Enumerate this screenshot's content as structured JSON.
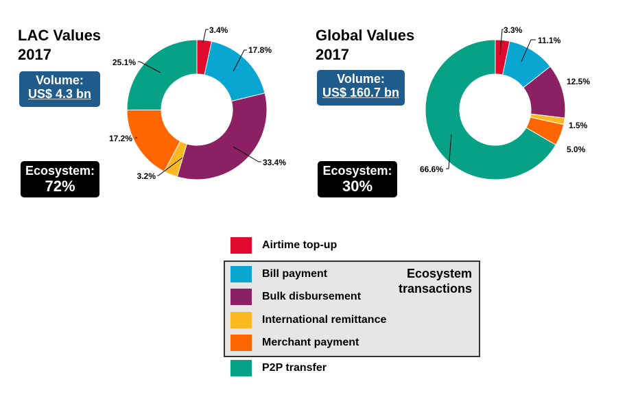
{
  "colors": {
    "airtime": "#e0092e",
    "bill": "#0aa6d2",
    "bulk": "#8b2162",
    "remit": "#fcb823",
    "merchant": "#ff6600",
    "p2p": "#07a285"
  },
  "panels": [
    {
      "title_line1": "LAC Values",
      "title_line2": "2017",
      "volume_line1": "Volume:",
      "volume_line2": "US$ 4.3 bn",
      "eco_line1": "Ecosystem:",
      "eco_line2": "72%"
    },
    {
      "title_line1": "Global Values",
      "title_line2": "2017",
      "volume_line1": "Volume:",
      "volume_line2": "US$ 160.7 bn",
      "eco_line1": "Ecosystem:",
      "eco_line2": "30%"
    }
  ],
  "legend": {
    "items": [
      {
        "label": "Airtime top-up",
        "color_key": "airtime"
      },
      {
        "label": "Bill payment",
        "color_key": "bill"
      },
      {
        "label": "Bulk disbursement",
        "color_key": "bulk"
      },
      {
        "label": "International remittance",
        "color_key": "remit"
      },
      {
        "label": "Merchant payment",
        "color_key": "merchant"
      },
      {
        "label": "P2P transfer",
        "color_key": "p2p"
      }
    ],
    "ecosystem_caption_line1": "Ecosystem",
    "ecosystem_caption_line2": "transactions"
  },
  "chart_data": [
    {
      "type": "pie",
      "subtype": "donut",
      "title": "LAC Values 2017",
      "categories": [
        "Airtime top-up",
        "Bill payment",
        "Bulk disbursement",
        "International remittance",
        "Merchant payment",
        "P2P transfer"
      ],
      "values": [
        3.4,
        17.8,
        33.4,
        3.2,
        17.2,
        25.1
      ],
      "value_labels": [
        "3.4%",
        "17.8%",
        "33.4%",
        "3.2%",
        "17.2%",
        "25.1%"
      ]
    },
    {
      "type": "pie",
      "subtype": "donut",
      "title": "Global Values 2017",
      "categories": [
        "Airtime top-up",
        "Bill payment",
        "Bulk disbursement",
        "International remittance",
        "Merchant payment",
        "P2P transfer"
      ],
      "values": [
        3.3,
        11.1,
        12.5,
        1.5,
        5.0,
        66.6
      ],
      "value_labels": [
        "3.3%",
        "11.1%",
        "12.5%",
        "1.5%",
        "5.0%",
        "66.6%"
      ]
    }
  ]
}
